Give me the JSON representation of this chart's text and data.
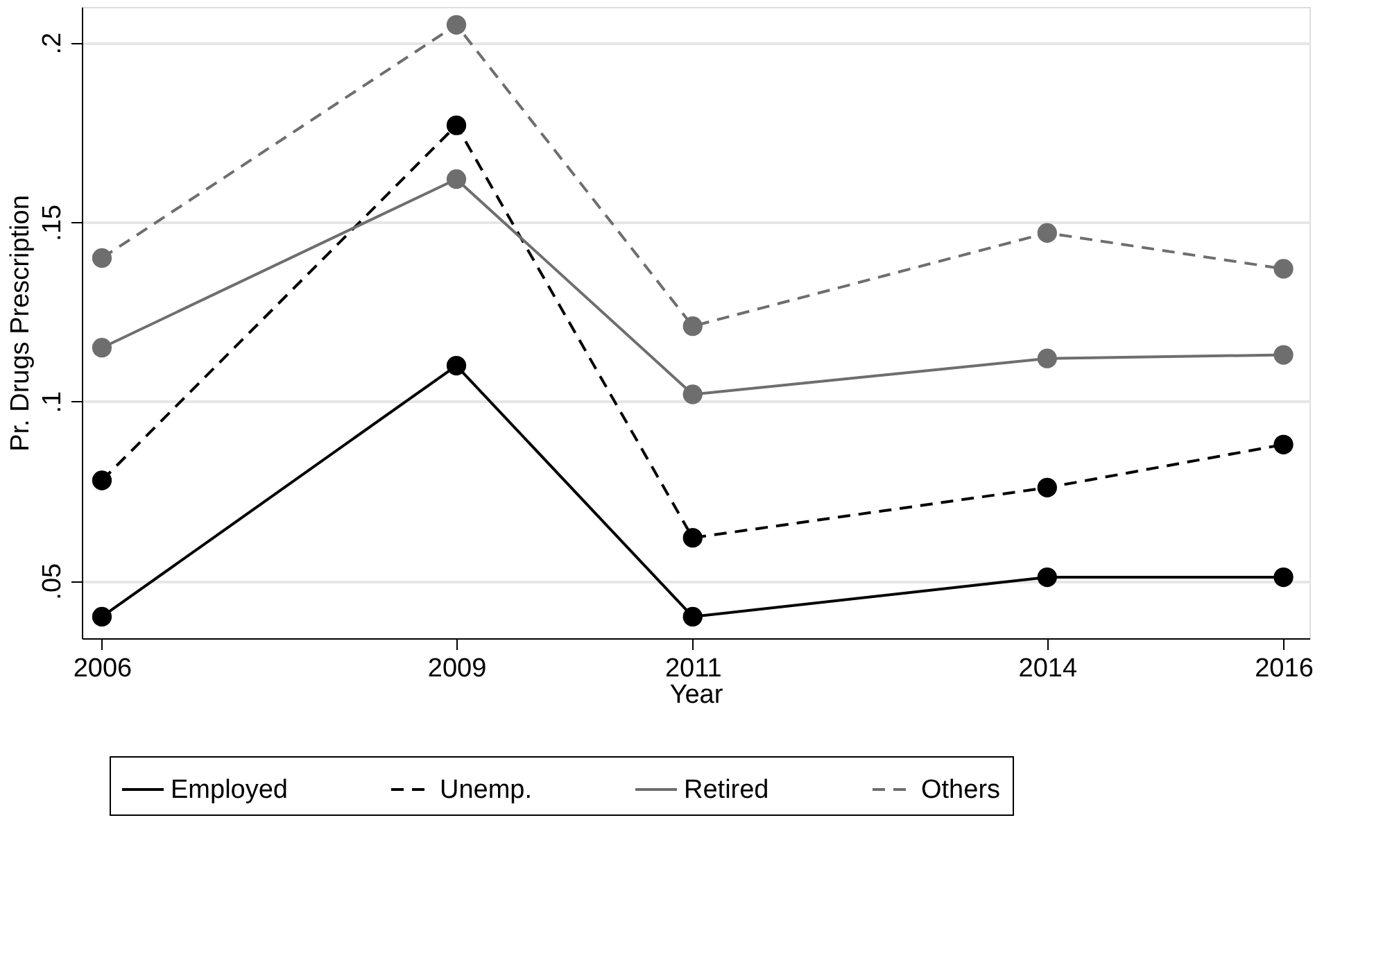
{
  "chart_data": {
    "type": "line",
    "xlabel": "Year",
    "ylabel": "Pr. Drugs Prescription",
    "x": [
      2006,
      2009,
      2011,
      2014,
      2016
    ],
    "xlim": [
      2005.83,
      2016.22
    ],
    "xticks": [
      2006,
      2009,
      2011,
      2014,
      2016
    ],
    "ylim": [
      0.034,
      0.21
    ],
    "yticks": [
      {
        "value": 0.05,
        "label": ".05"
      },
      {
        "value": 0.1,
        "label": ".1"
      },
      {
        "value": 0.15,
        "label": ".15"
      },
      {
        "value": 0.2,
        "label": ".2"
      }
    ],
    "grid": "y",
    "legend": "bottom",
    "marker": "circle",
    "series": [
      {
        "name": "Employed",
        "color": "#000000",
        "line_style": "solid",
        "values": [
          0.04,
          0.11,
          0.04,
          0.051,
          0.051
        ]
      },
      {
        "name": "Unemp.",
        "color": "#000000",
        "line_style": "dashed",
        "values": [
          0.078,
          0.177,
          0.062,
          0.076,
          0.088
        ]
      },
      {
        "name": "Retired",
        "color": "#6e6e6e",
        "line_style": "solid",
        "values": [
          0.115,
          0.162,
          0.102,
          0.112,
          0.113
        ]
      },
      {
        "name": "Others",
        "color": "#6e6e6e",
        "line_style": "dashed",
        "values": [
          0.14,
          0.205,
          0.121,
          0.147,
          0.137
        ]
      }
    ]
  }
}
